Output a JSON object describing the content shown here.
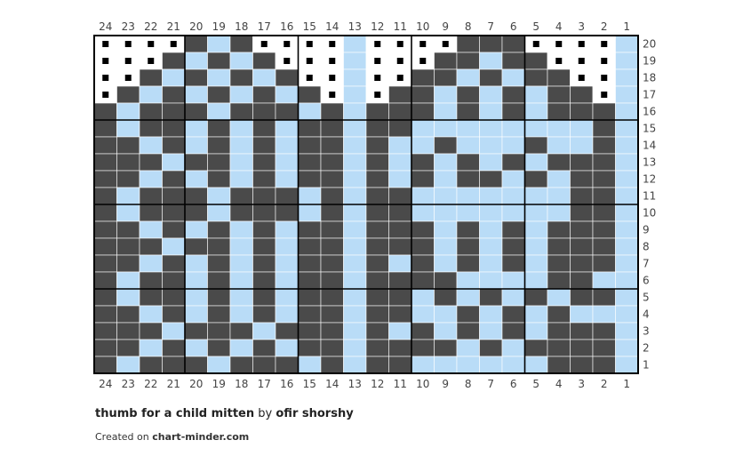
{
  "pattern": {
    "title": "thumb for a child mitten",
    "by_word": "by",
    "author": "ofir shorshy",
    "created_prefix": "Created on",
    "site": "chart-minder.com"
  },
  "colors": {
    "dark": "#4a4a4a",
    "light": "#b9dcf7",
    "empty": "#ffffff",
    "grid": "#000000",
    "no_stitch_mark": "#000000"
  },
  "chart_data": {
    "type": "table",
    "columns": [
      24,
      23,
      22,
      21,
      20,
      19,
      18,
      17,
      16,
      15,
      14,
      13,
      12,
      11,
      10,
      9,
      8,
      7,
      6,
      5,
      4,
      3,
      2,
      1
    ],
    "rows_from_top": [
      20,
      19,
      18,
      17,
      16,
      15,
      14,
      13,
      12,
      11,
      10,
      9,
      8,
      7,
      6,
      5,
      4,
      3,
      2,
      1
    ],
    "legend": {
      "D": "dark",
      "L": "light",
      "X": "no stitch"
    },
    "grid": [
      "XXXXDLDXXXXLXXXXDDDXXXXL",
      "XXXDLDLDXXXLXXXDDLDDXXXL",
      "XXDLDLDLDXXLXXDDLDLDDXXL",
      "XDLDLDLDLDXLXDDLDLDLDDXL",
      "DLDDDLDDDLDLDDDLDLDLDDDL",
      "DLDDLDLDLDDLDDLLLLLLLLDL",
      "DDLDLDLDLDDLDLLDLLLDLLDL",
      "DDDLDDLDLDDLDLDLDLDLDDDL",
      "DDLDLDLDLDDLDLDLDDLDLDDL",
      "DLDDDLDDDLDLDDLLLLLLLDDL",
      "DLDDDLDDDLDLDDLLLLLLLDDL",
      "DDLDLDLDLDDLDDDLDLDLDDDL",
      "DDDLDDLDLDDLDDDLDLDLDDDL",
      "DDLDLDLDLDDLDLDLDLDLDDDL",
      "DLDDLDLDLDDLDDDDLLLLDDLL",
      "DLDDLDLDLDDLDDLDLDLDLDDL",
      "DDLDLDLDLDDLDDLLDLDLDLLL",
      "DDDLDDDLDDDLDLDLDLDLDDDL",
      "DDLDLDLDLDDLDDDDLDLDDDDL",
      "DLDDDLDDDLDLDDLLLLLLDDDL"
    ]
  }
}
